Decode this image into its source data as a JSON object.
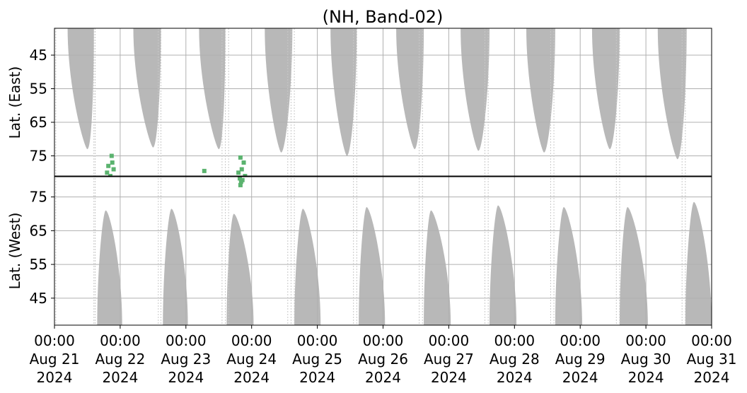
{
  "chart_data": {
    "type": "heatmap",
    "title": "(NH, Band-02)",
    "grid": true,
    "colors": {
      "coverage": "#b8b8b8",
      "detection": "#5bb36f",
      "grid": "#b0b0b0",
      "divider": "#000000"
    },
    "x": {
      "ticks": [
        {
          "time": "00:00",
          "date": "Aug 21",
          "year": "2024"
        },
        {
          "time": "00:00",
          "date": "Aug 22",
          "year": "2024"
        },
        {
          "time": "00:00",
          "date": "Aug 23",
          "year": "2024"
        },
        {
          "time": "00:00",
          "date": "Aug 24",
          "year": "2024"
        },
        {
          "time": "00:00",
          "date": "Aug 25",
          "year": "2024"
        },
        {
          "time": "00:00",
          "date": "Aug 26",
          "year": "2024"
        },
        {
          "time": "00:00",
          "date": "Aug 27",
          "year": "2024"
        },
        {
          "time": "00:00",
          "date": "Aug 28",
          "year": "2024"
        },
        {
          "time": "00:00",
          "date": "Aug 29",
          "year": "2024"
        },
        {
          "time": "00:00",
          "date": "Aug 30",
          "year": "2024"
        },
        {
          "time": "00:00",
          "date": "Aug 31",
          "year": "2024"
        }
      ],
      "range_days": [
        0,
        10
      ]
    },
    "panels": [
      {
        "name": "east",
        "ylabel": "Lat. (East)",
        "yticks": [
          "45",
          "55",
          "65",
          "75"
        ],
        "tick_values": [
          45,
          55,
          65,
          75
        ],
        "ylim": [
          37,
          81
        ],
        "direction": "down",
        "coverage": [
          {
            "start": 0.2,
            "end": 0.6,
            "minlat": 73.0,
            "peak": 0.5
          },
          {
            "start": 1.2,
            "end": 1.62,
            "minlat": 72.5,
            "peak": 1.5
          },
          {
            "start": 2.2,
            "end": 2.6,
            "minlat": 73.0,
            "peak": 2.5
          },
          {
            "start": 3.2,
            "end": 3.62,
            "minlat": 74.0,
            "peak": 3.45
          },
          {
            "start": 4.2,
            "end": 4.6,
            "minlat": 75.0,
            "peak": 4.45
          },
          {
            "start": 5.2,
            "end": 5.62,
            "minlat": 73.0,
            "peak": 5.48
          },
          {
            "start": 6.18,
            "end": 6.62,
            "minlat": 73.5,
            "peak": 6.45
          },
          {
            "start": 7.18,
            "end": 7.62,
            "minlat": 74.0,
            "peak": 7.45
          },
          {
            "start": 8.18,
            "end": 8.6,
            "minlat": 73.0,
            "peak": 8.45
          },
          {
            "start": 9.18,
            "end": 9.62,
            "minlat": 76.0,
            "peak": 9.48
          }
        ],
        "detections": [
          {
            "day": 0.85,
            "lat": 81.0
          },
          {
            "day": 0.8,
            "lat": 80.0
          },
          {
            "day": 0.82,
            "lat": 78.0
          },
          {
            "day": 0.88,
            "lat": 77.0
          },
          {
            "day": 0.87,
            "lat": 75.0
          },
          {
            "day": 0.9,
            "lat": 79.0
          },
          {
            "day": 2.28,
            "lat": 79.5
          },
          {
            "day": 2.8,
            "lat": 80.0
          },
          {
            "day": 2.85,
            "lat": 79.0
          },
          {
            "day": 2.88,
            "lat": 77.0
          },
          {
            "day": 2.9,
            "lat": 81.0
          },
          {
            "day": 2.83,
            "lat": 75.5
          }
        ]
      },
      {
        "name": "west",
        "ylabel": "Lat. (West)",
        "yticks": [
          "75",
          "65",
          "55",
          "45"
        ],
        "tick_values": [
          75,
          65,
          55,
          45
        ],
        "ylim": [
          81,
          37
        ],
        "direction": "up",
        "coverage": [
          {
            "start": 0.65,
            "end": 1.03,
            "minlat": 71.0,
            "peak": 0.78
          },
          {
            "start": 1.65,
            "end": 2.03,
            "minlat": 71.5,
            "peak": 1.78
          },
          {
            "start": 2.62,
            "end": 3.03,
            "minlat": 70.0,
            "peak": 2.73
          },
          {
            "start": 3.65,
            "end": 4.05,
            "minlat": 71.5,
            "peak": 3.78
          },
          {
            "start": 4.63,
            "end": 5.03,
            "minlat": 72.0,
            "peak": 4.75
          },
          {
            "start": 5.62,
            "end": 6.03,
            "minlat": 71.0,
            "peak": 5.73
          },
          {
            "start": 6.62,
            "end": 7.03,
            "minlat": 72.5,
            "peak": 6.75
          },
          {
            "start": 7.62,
            "end": 8.03,
            "minlat": 72.0,
            "peak": 7.75
          },
          {
            "start": 8.6,
            "end": 9.03,
            "minlat": 72.0,
            "peak": 8.72
          },
          {
            "start": 9.6,
            "end": 10.0,
            "minlat": 73.5,
            "peak": 9.73
          }
        ],
        "detections": [
          {
            "day": 2.82,
            "lat": 80.5
          },
          {
            "day": 2.84,
            "lat": 79.5
          },
          {
            "day": 2.83,
            "lat": 78.5
          },
          {
            "day": 2.86,
            "lat": 80.0
          }
        ]
      }
    ],
    "orbit_lines": [
      0.02,
      0.6,
      0.62,
      1.58,
      1.62,
      2.55,
      2.6,
      2.65,
      3.55,
      3.6,
      3.65,
      4.55,
      4.6,
      5.55,
      5.6,
      6.55,
      6.6,
      7.55,
      7.6,
      8.55,
      8.6,
      9.55,
      9.6
    ]
  }
}
